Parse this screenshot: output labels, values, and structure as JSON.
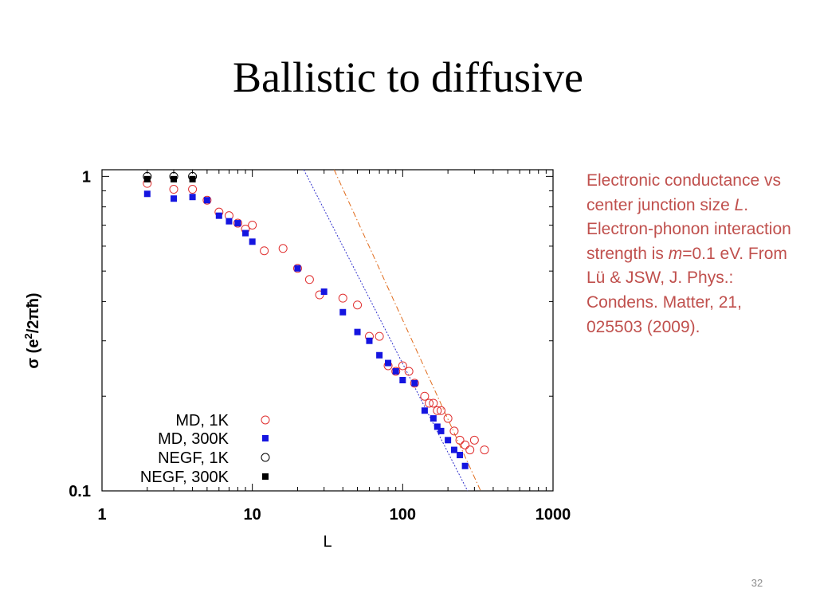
{
  "slide": {
    "title": "Ballistic to diffusive",
    "number": "32"
  },
  "caption": {
    "part1": "Electronic conductance vs center junction size ",
    "var_L": "L",
    "part2": ". Electron-phonon interaction strength is ",
    "var_m": "m",
    "part3": "=0.1 eV. From Lü & JSW, J. Phys.: Condens. Matter, 21, 025503 (2009)."
  },
  "chart_data": {
    "type": "scatter",
    "title": "",
    "xlabel": "L",
    "ylabel": "σ (e²/2πħ)",
    "ylabel_parts": {
      "pre": "σ (e",
      "sup": "2",
      "post": "/2πħ)"
    },
    "x_scale": "log",
    "y_scale": "log",
    "xlim": [
      1,
      1000
    ],
    "ylim": [
      0.1,
      1.05
    ],
    "x_ticks": [
      1,
      10,
      100,
      1000
    ],
    "x_tick_labels": [
      "1",
      "10",
      "100",
      "1000"
    ],
    "y_ticks": [
      0.1,
      1
    ],
    "y_tick_labels": [
      "0.1",
      "1"
    ],
    "grid": false,
    "legend_position": "bottom-left",
    "series": [
      {
        "name": "MD, 1K",
        "marker": "open-circle",
        "color": "#e03030",
        "points": [
          [
            2,
            0.95
          ],
          [
            3,
            0.91
          ],
          [
            4,
            0.91
          ],
          [
            5,
            0.84
          ],
          [
            6,
            0.77
          ],
          [
            7,
            0.75
          ],
          [
            8,
            0.71
          ],
          [
            9,
            0.68
          ],
          [
            10,
            0.7
          ],
          [
            12,
            0.58
          ],
          [
            16,
            0.59
          ],
          [
            20,
            0.51
          ],
          [
            24,
            0.47
          ],
          [
            28,
            0.42
          ],
          [
            40,
            0.41
          ],
          [
            50,
            0.39
          ],
          [
            60,
            0.31
          ],
          [
            70,
            0.31
          ],
          [
            80,
            0.25
          ],
          [
            90,
            0.24
          ],
          [
            100,
            0.25
          ],
          [
            110,
            0.24
          ],
          [
            120,
            0.22
          ],
          [
            140,
            0.2
          ],
          [
            150,
            0.19
          ],
          [
            160,
            0.19
          ],
          [
            170,
            0.18
          ],
          [
            180,
            0.18
          ],
          [
            200,
            0.17
          ],
          [
            220,
            0.155
          ],
          [
            240,
            0.145
          ],
          [
            260,
            0.14
          ],
          [
            280,
            0.135
          ],
          [
            300,
            0.145
          ],
          [
            350,
            0.135
          ]
        ]
      },
      {
        "name": "MD, 300K",
        "marker": "filled-square",
        "color": "#1515e0",
        "points": [
          [
            2,
            0.88
          ],
          [
            3,
            0.85
          ],
          [
            4,
            0.86
          ],
          [
            5,
            0.84
          ],
          [
            6,
            0.75
          ],
          [
            7,
            0.72
          ],
          [
            8,
            0.71
          ],
          [
            9,
            0.66
          ],
          [
            10,
            0.62
          ],
          [
            20,
            0.51
          ],
          [
            30,
            0.43
          ],
          [
            40,
            0.37
          ],
          [
            50,
            0.32
          ],
          [
            60,
            0.3
          ],
          [
            70,
            0.27
          ],
          [
            80,
            0.255
          ],
          [
            90,
            0.24
          ],
          [
            100,
            0.225
          ],
          [
            120,
            0.22
          ],
          [
            140,
            0.18
          ],
          [
            160,
            0.17
          ],
          [
            170,
            0.16
          ],
          [
            180,
            0.155
          ],
          [
            200,
            0.145
          ],
          [
            220,
            0.135
          ],
          [
            240,
            0.13
          ],
          [
            260,
            0.12
          ]
        ]
      },
      {
        "name": "NEGF, 1K",
        "marker": "open-circle",
        "color": "#000000",
        "points": [
          [
            2,
            1.0
          ],
          [
            3,
            1.0
          ],
          [
            4,
            1.0
          ]
        ]
      },
      {
        "name": "NEGF, 300K",
        "marker": "filled-square",
        "color": "#000000",
        "points": [
          [
            2,
            0.98
          ],
          [
            3,
            0.98
          ],
          [
            4,
            0.98
          ]
        ]
      }
    ],
    "reference_lines": [
      {
        "style": "dotted",
        "color": "#3030cc",
        "from": [
          22,
          1.05
        ],
        "to": [
          270,
          0.1
        ]
      },
      {
        "style": "dash-dot",
        "color": "#e06a1a",
        "from": [
          35,
          1.05
        ],
        "to": [
          330,
          0.1
        ]
      }
    ]
  }
}
